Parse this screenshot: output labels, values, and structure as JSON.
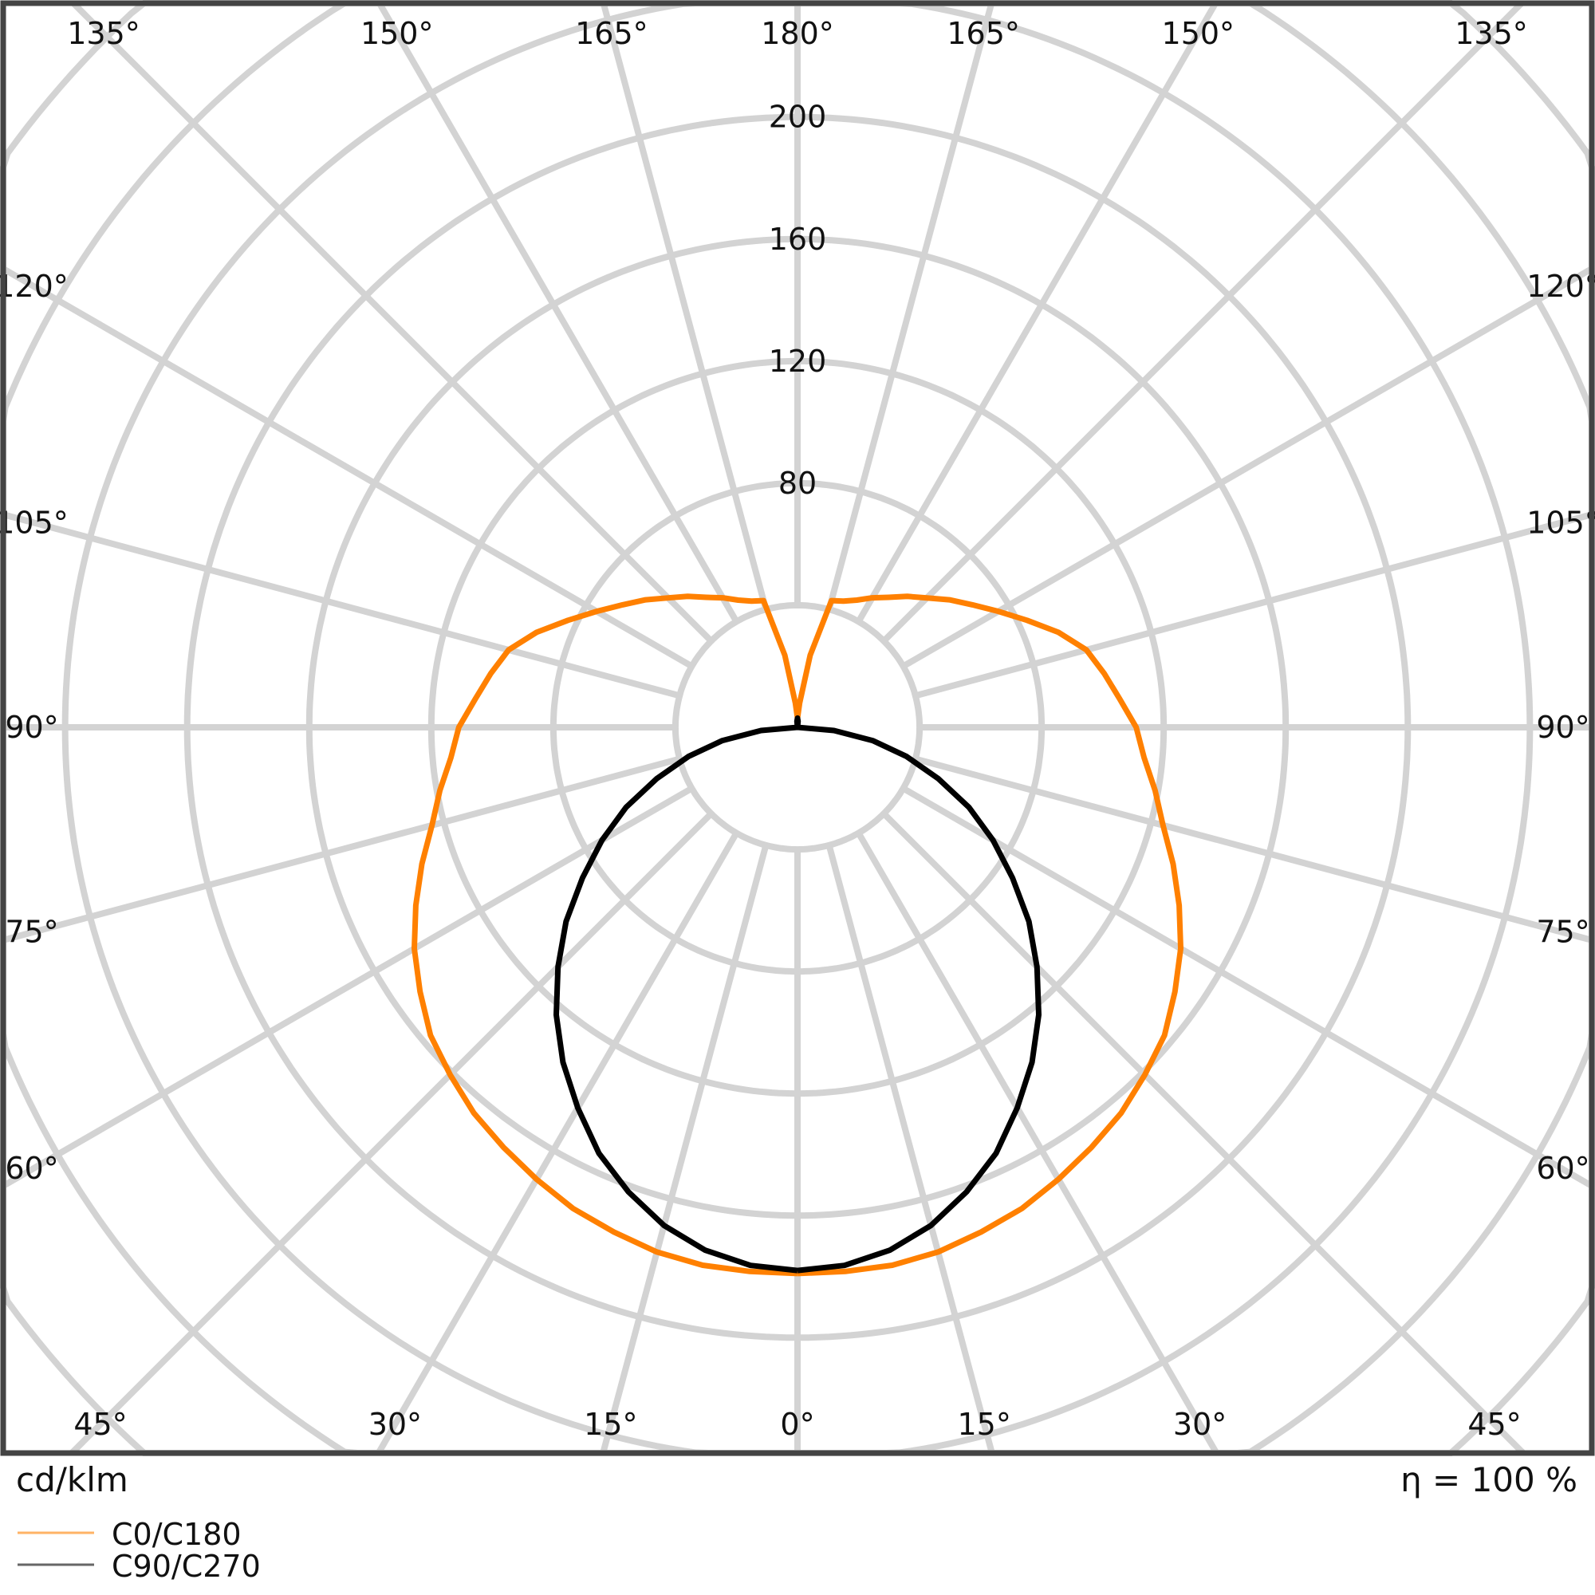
{
  "chart_data": {
    "type": "polar",
    "unit_label": "cd/klm",
    "efficiency_label": "η = 100 %",
    "radial_ticks": [
      80,
      120,
      160,
      200
    ],
    "radial_tick_labels": [
      "80",
      "120",
      "160",
      "200"
    ],
    "grid_rings": [
      40,
      80,
      120,
      160,
      200,
      240,
      280,
      320
    ],
    "angle_step_deg": 15,
    "angle_labels": {
      "top": [
        "135°",
        "150°",
        "165°",
        "180°",
        "165°",
        "150°",
        "135°"
      ],
      "left": [
        "120°",
        "105°",
        "90°",
        "75°",
        "60°"
      ],
      "right": [
        "120°",
        "105°",
        "90°",
        "75°",
        "60°"
      ],
      "bottom": [
        "45°",
        "30°",
        "15°",
        "0°",
        "15°",
        "30°",
        "45°"
      ]
    },
    "grid": true,
    "legend_position": "bottom-left",
    "angles_deg": [
      0,
      5,
      10,
      15,
      20,
      25,
      30,
      35,
      40,
      45,
      50,
      55,
      60,
      65,
      70,
      75,
      80,
      85,
      90,
      95,
      100,
      105,
      110,
      115,
      120,
      125,
      130,
      135,
      140,
      145,
      150,
      155,
      160,
      165,
      170,
      175,
      180
    ],
    "series": [
      {
        "name": "C0/C180",
        "color": "#ff8000",
        "values": [
          179,
          179,
          179,
          178,
          176,
          174,
          171,
          168,
          165,
          161,
          157,
          151,
          145,
          138,
          131,
          124,
          119,
          114,
          111,
          106,
          102,
          98,
          91,
          83,
          76,
          70,
          65,
          60,
          56,
          52,
          49,
          46,
          44,
          43,
          24,
          8,
          3
        ]
      },
      {
        "name": "C90/C270",
        "color": "#000000",
        "values": [
          178,
          177,
          174,
          169,
          162,
          154,
          144,
          134,
          123,
          111,
          99,
          86,
          74,
          62,
          49,
          37,
          25,
          12,
          0,
          0,
          0,
          0,
          0,
          0,
          0,
          0,
          0,
          0,
          0,
          0,
          0,
          0,
          0,
          0,
          0,
          2,
          3
        ]
      }
    ]
  }
}
